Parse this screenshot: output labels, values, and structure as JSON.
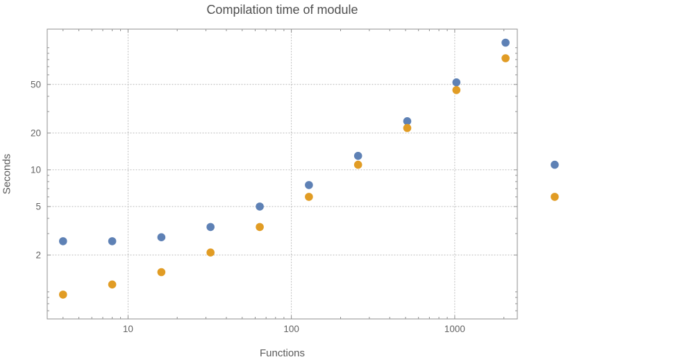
{
  "chart_data": {
    "type": "scatter",
    "title": "Compilation time of module",
    "xlabel": "Functions",
    "ylabel": "Seconds",
    "x_scale": "log",
    "y_scale": "log",
    "xlim": [
      3.2,
      2416
    ],
    "ylim": [
      0.6,
      142
    ],
    "x_ticks": [
      10,
      100,
      1000
    ],
    "y_ticks": [
      2,
      5,
      10,
      20,
      50
    ],
    "grid": "dotted",
    "legend": "none",
    "plot_range_clipping": false,
    "x": [
      4,
      8,
      16,
      32,
      64,
      128,
      256,
      512,
      1024,
      2048,
      4096
    ],
    "series": [
      {
        "name": "blue",
        "color": "#5E81B5",
        "values": [
          2.6,
          2.6,
          2.8,
          3.4,
          5.0,
          7.5,
          13,
          25,
          52,
          110,
          11
        ]
      },
      {
        "name": "orange",
        "color": "#E19C24",
        "values": [
          0.95,
          1.15,
          1.45,
          2.1,
          3.4,
          6.0,
          11,
          22,
          45,
          82,
          6.0
        ]
      }
    ]
  }
}
